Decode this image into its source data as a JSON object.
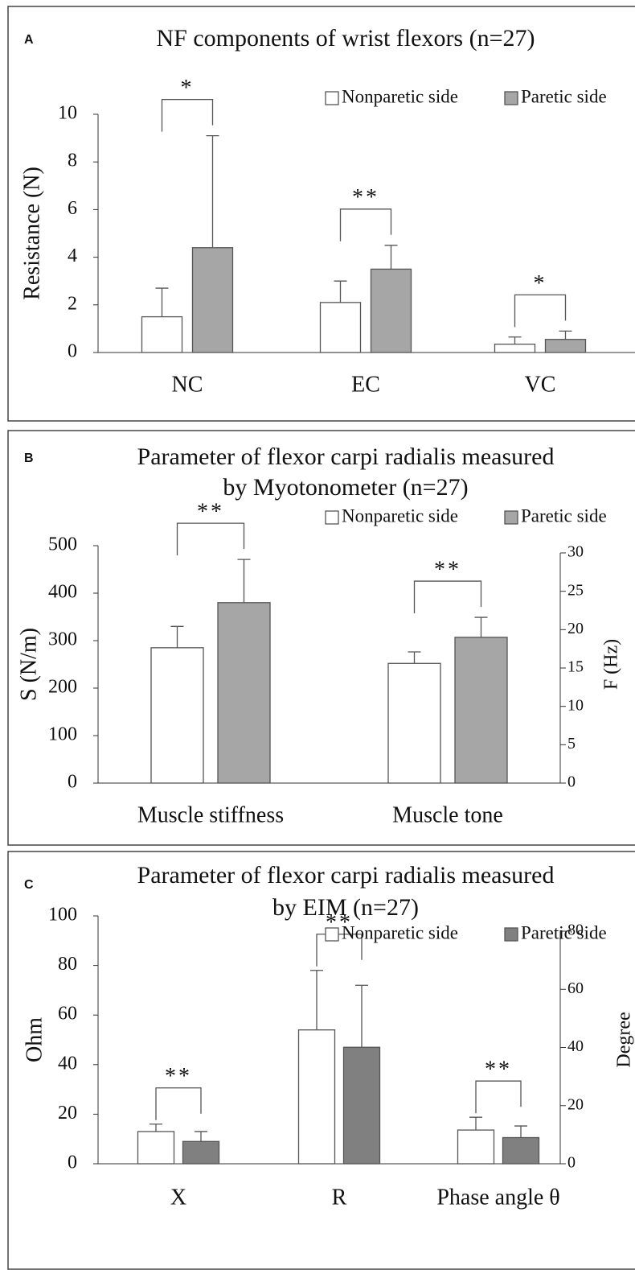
{
  "chart_data": [
    {
      "type": "bar",
      "panel": "A",
      "title": [
        "NF components of wrist flexors (n=27)"
      ],
      "ylabel": "Resistance (N)",
      "categories": [
        "NC",
        "EC",
        "VC"
      ],
      "series": [
        {
          "name": "Nonparetic side",
          "color": "#ffffff",
          "values": [
            1.5,
            2.1,
            0.35
          ],
          "errors": [
            1.2,
            0.9,
            0.3
          ]
        },
        {
          "name": "Paretic side",
          "color": "#a6a6a6",
          "values": [
            4.4,
            3.5,
            0.55
          ],
          "errors": [
            4.7,
            1.0,
            0.35
          ]
        }
      ],
      "significance": [
        "*",
        "**",
        "*"
      ],
      "ylim": [
        0,
        10
      ],
      "yticks": [
        0,
        2,
        4,
        6,
        8,
        10
      ],
      "legend": "upper right"
    },
    {
      "type": "bar",
      "panel": "B",
      "title": [
        "Parameter of  flexor carpi radialis measured",
        "by Myotonometer  (n=27)"
      ],
      "ylabel": "S (N/m)",
      "y2label": "F (Hz)",
      "categories": [
        "Muscle stiffness",
        "Muscle tone"
      ],
      "category_axis": [
        "y",
        "y2"
      ],
      "series": [
        {
          "name": "Nonparetic side",
          "color": "#ffffff",
          "values": [
            285,
            15.6
          ],
          "errors": [
            45,
            1.5
          ]
        },
        {
          "name": "Paretic side",
          "color": "#a6a6a6",
          "values": [
            380,
            19.0
          ],
          "errors": [
            91,
            2.6
          ]
        }
      ],
      "significance": [
        "**",
        "**"
      ],
      "ylim": [
        0,
        500
      ],
      "yticks": [
        0,
        100,
        200,
        300,
        400,
        500
      ],
      "y2lim": [
        0,
        30
      ],
      "y2ticks": [
        0,
        5,
        10,
        15,
        20,
        25,
        30
      ],
      "legend": "upper right"
    },
    {
      "type": "bar",
      "panel": "C",
      "title": [
        "Parameter of  flexor carpi radialis measured",
        "by EIM  (n=27)"
      ],
      "ylabel": "Ohm",
      "y2label": "Degree",
      "categories": [
        "X",
        "R",
        "Phase angle θ"
      ],
      "category_axis": [
        "y",
        "y",
        "y2"
      ],
      "series": [
        {
          "name": "Nonparetic side",
          "color": "#ffffff",
          "values": [
            13,
            54,
            11.6
          ],
          "errors": [
            3,
            24,
            4.4
          ]
        },
        {
          "name": "Paretic side",
          "color": "#808080",
          "values": [
            9,
            47,
            9
          ],
          "errors": [
            4,
            25,
            4
          ]
        }
      ],
      "significance": [
        "**",
        "**",
        "**"
      ],
      "ylim": [
        0,
        100
      ],
      "yticks": [
        0,
        20,
        40,
        60,
        80,
        100
      ],
      "y2lim": [
        0,
        80
      ],
      "y2ticks": [
        0,
        20,
        40,
        60,
        80
      ],
      "legend": "upper right"
    }
  ]
}
